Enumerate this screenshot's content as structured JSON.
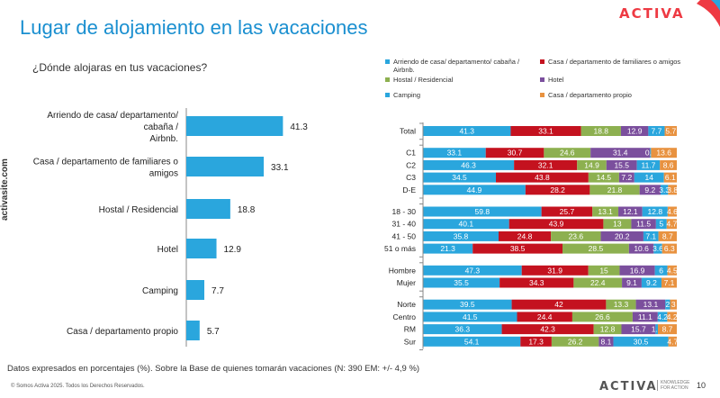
{
  "header": {
    "title": "Lugar de alojamiento en las vacaciones",
    "logo": "ACTIVA"
  },
  "question": "¿Dónde alojaras en tus vacaciones?",
  "side_text": "activasite.com",
  "footer": {
    "note": "Datos expresados en porcentajes (%). Sobre la Base de quienes tomarán vacaciones (N: 390 EM: +/- 4,9 %)",
    "copyright": "© Somos Activa 2025. Todos los Derechos Reservados.",
    "logo": "ACTIVA",
    "tagline_1": "KNOWLEDGE",
    "tagline_2": "FOR ACTION",
    "page_number": "10"
  },
  "legend": [
    {
      "label": "Arriendo de casa/ departamento/ cabaña / Airbnb.",
      "color": "#2aa6dd"
    },
    {
      "label": "Casa / departamento de familiares o amigos",
      "color": "#c4121f"
    },
    {
      "label": "Hostal / Residencial",
      "color": "#8db050"
    },
    {
      "label": "Hotel",
      "color": "#7b4f9d"
    },
    {
      "label": "Camping",
      "color": "#2aa6dd"
    },
    {
      "label": "Casa / departamento propio",
      "color": "#e89240"
    }
  ],
  "chart_data": [
    {
      "type": "bar",
      "orientation": "horizontal",
      "categories": [
        [
          "Arriendo de casa/ departamento/",
          "cabaña /",
          "Airbnb."
        ],
        [
          "Casa / departamento de familiares o",
          "amigos"
        ],
        [
          "Hostal / Residencial"
        ],
        [
          "Hotel"
        ],
        [
          "Camping"
        ],
        [
          "Casa / departamento propio"
        ]
      ],
      "values": [
        41.3,
        33.1,
        18.8,
        12.9,
        7.7,
        5.7
      ],
      "value_labels": [
        "41.3",
        "33.1",
        "18.8",
        "12.9",
        "7.7",
        "5.7"
      ],
      "color": "#2aa6dd",
      "xlim": [
        0,
        45
      ]
    },
    {
      "type": "bar",
      "orientation": "horizontal",
      "stacked": true,
      "series_colors": [
        "#2aa6dd",
        "#c4121f",
        "#8db050",
        "#7b4f9d",
        "#2aa6dd",
        "#e89240"
      ],
      "groups": [
        {
          "rows": [
            {
              "label": "Total",
              "values": [
                41.3,
                33.1,
                18.8,
                12.9,
                7.7,
                5.7
              ],
              "labels": [
                "41.3",
                "33.1",
                "18.8",
                "12.9",
                "7.7",
                "5.7"
              ]
            }
          ]
        },
        {
          "rows": [
            {
              "label": "C1",
              "values": [
                33.1,
                30.7,
                24.6,
                31.4,
                0.5,
                13.6
              ],
              "labels": [
                "33.1",
                "30.7",
                "24.6",
                "31.4",
                "0.5",
                "13.6"
              ]
            },
            {
              "label": "C2",
              "values": [
                46.3,
                32.1,
                14.9,
                15.5,
                11.7,
                8.6
              ],
              "labels": [
                "46.3",
                "32.1",
                "14.9",
                "15.5",
                "11.7",
                "8.6"
              ]
            },
            {
              "label": "C3",
              "values": [
                34.5,
                43.8,
                14.5,
                7.2,
                14,
                6.1
              ],
              "labels": [
                "34.5",
                "43.8",
                "14.5",
                "7.2",
                "14",
                "6.1"
              ]
            },
            {
              "label": "D-E",
              "values": [
                44.9,
                28.2,
                21.8,
                9.2,
                3.3,
                3.8
              ],
              "labels": [
                "44.9",
                "28.2",
                "21.8",
                "9.2",
                "3.3",
                "3.8"
              ]
            }
          ]
        },
        {
          "rows": [
            {
              "label": "18 - 30",
              "values": [
                59.8,
                25.7,
                13.1,
                12.1,
                12.8,
                4.6
              ],
              "labels": [
                "59.8",
                "25.7",
                "13.1",
                "12.1",
                "12.8",
                "4.6"
              ]
            },
            {
              "label": "31 - 40",
              "values": [
                40.1,
                43.9,
                13,
                11.5,
                5,
                4.7
              ],
              "labels": [
                "40.1",
                "43.9",
                "13",
                "11.5",
                "5",
                "4.7"
              ]
            },
            {
              "label": "41 - 50",
              "values": [
                35.8,
                24.8,
                23.6,
                20.2,
                7.1,
                8.7
              ],
              "labels": [
                "35.8",
                "24.8",
                "23.6",
                "20.2",
                "7.1",
                "8.7"
              ]
            },
            {
              "label": "51 o más",
              "values": [
                21.3,
                38.5,
                28.5,
                10.6,
                3.6,
                6.3
              ],
              "labels": [
                "21.3",
                "38.5",
                "28.5",
                "10.6",
                "3.6",
                "6.3"
              ]
            }
          ]
        },
        {
          "rows": [
            {
              "label": "Hombre",
              "values": [
                47.3,
                31.9,
                15,
                16.9,
                6,
                4.5
              ],
              "labels": [
                "47.3",
                "31.9",
                "15",
                "16.9",
                "6",
                "4.5"
              ]
            },
            {
              "label": "Mujer",
              "values": [
                35.5,
                34.3,
                22.4,
                9.1,
                9.2,
                7.1
              ],
              "labels": [
                "35.5",
                "34.3",
                "22.4",
                "9.1",
                "9.2",
                "7.1"
              ]
            }
          ]
        },
        {
          "rows": [
            {
              "label": "Norte",
              "values": [
                39.5,
                42,
                13.3,
                13.1,
                2.1,
                3
              ],
              "labels": [
                "39.5",
                "42",
                "13.3",
                "13.1",
                "2",
                "3"
              ]
            },
            {
              "label": "Centro",
              "values": [
                41.5,
                24.4,
                26.6,
                11.1,
                4.2,
                4.2
              ],
              "labels": [
                "41.5",
                "24.4",
                "26.6",
                "11.1",
                "4.2",
                "4.2"
              ]
            },
            {
              "label": "RM",
              "values": [
                36.3,
                42.3,
                12.8,
                15.7,
                1.1,
                8.7
              ],
              "labels": [
                "36.3",
                "42.3",
                "12.8",
                "15.7",
                "1.1",
                "8.7"
              ]
            },
            {
              "label": "Sur",
              "values": [
                54.1,
                17.3,
                26.2,
                8.1,
                30.5,
                4.7
              ],
              "labels": [
                "54.1",
                "17.3",
                "26.2",
                "8.1",
                "30.5",
                "4.7"
              ]
            }
          ]
        }
      ]
    }
  ]
}
